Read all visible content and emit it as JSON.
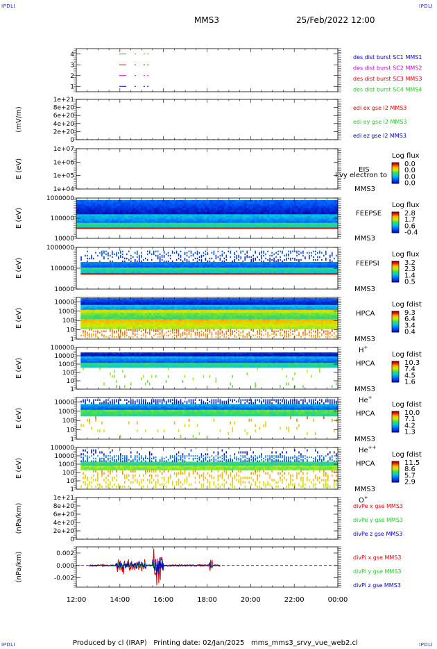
{
  "corner_labels": {
    "tl": "IPDLI",
    "tr": "IPDLI",
    "bl": "IPDLI",
    "br": "IPDLI"
  },
  "header": {
    "mission": "MMS3",
    "datetime": "25/Feb/2022 12:00"
  },
  "footer": {
    "produced_by": "Produced by cl (IRAP)",
    "printing_date": "Printing date: 02/Jan/2025",
    "filename": "mms_mms3_srvy_vue_web2.cl"
  },
  "colors": {
    "red": "#e60000",
    "green": "#22cc22",
    "blue": "#0000cc",
    "magenta": "#cc00cc",
    "dash": "#000000"
  },
  "chart_data": [
    {
      "type": "line",
      "panel": "burst-flags",
      "yticks": [
        "1",
        "2",
        "3",
        "4"
      ],
      "ylim": [
        0.5,
        4.5
      ],
      "series": [
        {
          "name": "des dist burst SC1 MMS1",
          "color": "#0000cc",
          "y": 1
        },
        {
          "name": "des dist burst SC2 MMS2",
          "color": "#cc00cc",
          "y": 2
        },
        {
          "name": "des dist burst SC3 MMS3",
          "color": "#e60000",
          "y": 3
        },
        {
          "name": "des dist burst SC4 MMS4",
          "color": "#22cc22",
          "y": 4
        }
      ]
    },
    {
      "type": "line",
      "panel": "edi-e-field",
      "ylabel": "(mV/m)",
      "yticks": [
        "0",
        "2e+20",
        "4e+20",
        "6e+20",
        "8e+20",
        "1e+21"
      ],
      "ylim": [
        0,
        1e+21
      ],
      "series": [
        {
          "name": "edi ex gse l2 MMS3",
          "color": "#e60000"
        },
        {
          "name": "edi ey gse l2 MMS3",
          "color": "#22cc22"
        },
        {
          "name": "edi ez gse l2 MMS3",
          "color": "#0000cc"
        }
      ]
    },
    {
      "type": "heatmap",
      "panel": "eis",
      "ylabel": "E (eV)",
      "yticks": [
        "1e+04",
        "1e+05",
        "1e+06",
        "1e+07"
      ],
      "ylim": [
        10000.0,
        10000000.0
      ],
      "scale": "log",
      "instrument": [
        "EIS",
        "MMS3"
      ],
      "overlay": "l vy electron to",
      "colorbar_title": "Log flux",
      "colorbar_ticks": [
        "0.0",
        "0.0",
        "0.0",
        "0.0"
      ]
    },
    {
      "type": "heatmap",
      "panel": "feeps-e",
      "ylabel": "E (eV)",
      "yticks": [
        "10000",
        "100000",
        "1000000"
      ],
      "ylim": [
        10000,
        1000000
      ],
      "scale": "log",
      "instrument": [
        "FEEPSE",
        "MMS3"
      ],
      "colorbar_title": "Log flux",
      "colorbar_ticks": [
        "2.8",
        "1.7",
        "0.6",
        "-0.4"
      ]
    },
    {
      "type": "heatmap",
      "panel": "feeps-i",
      "ylabel": "E (eV)",
      "yticks": [
        "10000",
        "100000",
        "1000000"
      ],
      "ylim": [
        10000,
        1000000
      ],
      "scale": "log",
      "instrument": [
        "FEEPSI",
        "MMS3"
      ],
      "colorbar_title": "Log flux",
      "colorbar_ticks": [
        "3.2",
        "2.3",
        "1.4",
        "0.5"
      ]
    },
    {
      "type": "heatmap",
      "panel": "hpca-h",
      "ylabel": "E (eV)",
      "yticks": [
        "1",
        "10",
        "100",
        "1000",
        "10000"
      ],
      "ylim": [
        1,
        30000
      ],
      "scale": "log",
      "instrument": [
        "HPCA",
        "MMS3"
      ],
      "species_base": "H",
      "species_sup": "+",
      "colorbar_title": "Log fdist",
      "colorbar_ticks": [
        "9.3",
        "6.4",
        "3.4",
        "0.4"
      ]
    },
    {
      "type": "heatmap",
      "panel": "hpca-he",
      "ylabel": "E (eV)",
      "yticks": [
        "1",
        "10",
        "100",
        "1000",
        "10000",
        "100000"
      ],
      "ylim": [
        1,
        100000
      ],
      "scale": "log",
      "instrument": [
        "HPCA",
        "MMS3"
      ],
      "species_base": "He",
      "species_sup": "+",
      "colorbar_title": "Log fdist",
      "colorbar_ticks": [
        "10.3",
        "7.4",
        "4.5",
        "1.6"
      ]
    },
    {
      "type": "heatmap",
      "panel": "hpca-hepp",
      "ylabel": "E (eV)",
      "yticks": [
        "1",
        "10",
        "100",
        "1000",
        "10000"
      ],
      "ylim": [
        1,
        30000
      ],
      "scale": "log",
      "instrument": [
        "HPCA",
        "MMS3"
      ],
      "species_base": "He",
      "species_sup": "++",
      "colorbar_title": "Log fdist",
      "colorbar_ticks": [
        "10.0",
        "7.1",
        "4.2",
        "1.3"
      ]
    },
    {
      "type": "heatmap",
      "panel": "hpca-o",
      "ylabel": "E (eV)",
      "yticks": [
        "1",
        "10",
        "100",
        "1000",
        "10000",
        "100000"
      ],
      "ylim": [
        1,
        100000
      ],
      "scale": "log",
      "instrument": [
        "HPCA",
        "MMS3"
      ],
      "species_base": "O",
      "species_sup": "+",
      "colorbar_title": "Log fdist",
      "colorbar_ticks": [
        "11.5",
        "8.6",
        "5.7",
        "2.9"
      ]
    },
    {
      "type": "line",
      "panel": "divpe",
      "ylabel": "(nPa/km)",
      "yticks": [
        "0",
        "2e+20",
        "4e+20",
        "6e+20",
        "8e+20",
        "1e+21"
      ],
      "ylim": [
        0,
        1e+21
      ],
      "series": [
        {
          "name": "divPe x gse MMS3",
          "color": "#e60000"
        },
        {
          "name": "divPe y gse MMS3",
          "color": "#22cc22"
        },
        {
          "name": "divPe z gse MMS3",
          "color": "#0000cc"
        }
      ]
    },
    {
      "type": "line",
      "panel": "divpi",
      "ylabel": "(nPa/km)",
      "yticks": [
        "-0.002",
        "0.000",
        "0.002"
      ],
      "ylim": [
        -0.0035,
        0.003
      ],
      "data_range_hours": [
        12.6,
        18.6
      ],
      "series": [
        {
          "name": "divPi x gse MMS3",
          "color": "#e60000"
        },
        {
          "name": "divPi y gse MMS3",
          "color": "#22cc22"
        },
        {
          "name": "divPi z gse MMS3",
          "color": "#0000cc"
        }
      ]
    }
  ],
  "xaxis": {
    "tick_labels": [
      "12:00",
      "14:00",
      "16:00",
      "18:00",
      "20:00",
      "22:00",
      "00:00"
    ],
    "range_hours": [
      12,
      24
    ]
  }
}
